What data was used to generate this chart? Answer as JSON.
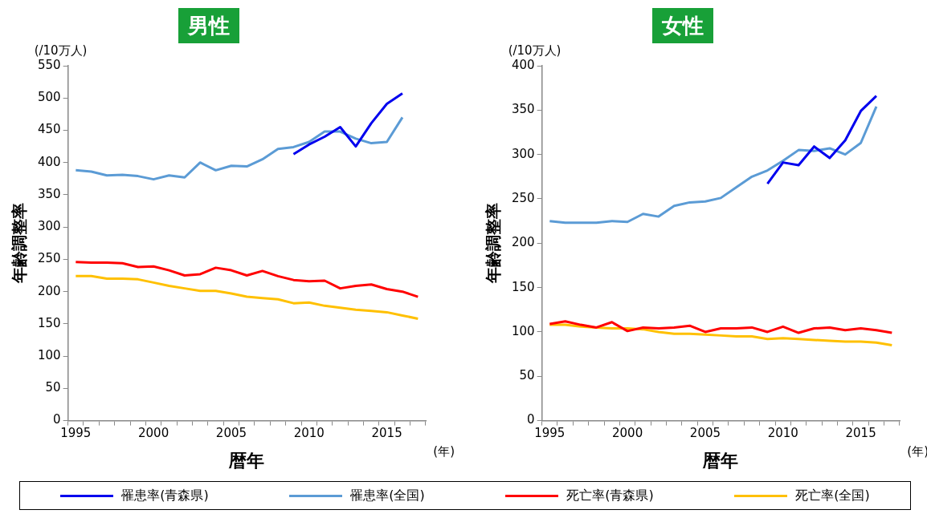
{
  "chart_data": [
    {
      "type": "line",
      "title": "男性",
      "xlabel": "暦年",
      "ylabel": "年齢調整率",
      "annotations": [
        "(/10万人)",
        "(年)"
      ],
      "categories": [
        "1995",
        null,
        null,
        null,
        null,
        "2000",
        null,
        null,
        null,
        null,
        "2005",
        null,
        null,
        null,
        null,
        "2010",
        null,
        null,
        null,
        null,
        "2015",
        null,
        null
      ],
      "series": [
        {
          "name": "罹患率(青森県)",
          "color": "#0000ee",
          "values": [
            null,
            null,
            null,
            null,
            null,
            null,
            null,
            null,
            null,
            null,
            null,
            null,
            null,
            null,
            413,
            428,
            440,
            455,
            425,
            461,
            491,
            507,
            null
          ]
        },
        {
          "name": "罹患率(全国)",
          "color": "#5b9bd5",
          "values": [
            388,
            386,
            380,
            381,
            379,
            374,
            380,
            377,
            400,
            388,
            395,
            394,
            405,
            421,
            424,
            432,
            448,
            448,
            437,
            430,
            432,
            470,
            null
          ]
        },
        {
          "name": "死亡率(青森県)",
          "color": "#ff0000",
          "values": [
            246,
            245,
            245,
            244,
            238,
            239,
            233,
            225,
            227,
            237,
            233,
            225,
            232,
            224,
            218,
            216,
            217,
            205,
            209,
            211,
            204,
            200,
            192
          ]
        },
        {
          "name": "死亡率(全国)",
          "color": "#ffc000",
          "values": [
            224,
            224,
            220,
            220,
            219,
            214,
            209,
            205,
            201,
            201,
            197,
            192,
            190,
            188,
            182,
            183,
            178,
            175,
            172,
            170,
            168,
            163,
            158
          ]
        }
      ],
      "ylim": [
        0,
        550
      ],
      "yticks": [
        0,
        50,
        100,
        150,
        200,
        250,
        300,
        350,
        400,
        450,
        500,
        550
      ],
      "marker": "none",
      "legend": "bottom"
    },
    {
      "type": "line",
      "title": "女性",
      "xlabel": "暦年",
      "ylabel": "年齢調整率",
      "annotations": [
        "(/10万人)",
        "(年)"
      ],
      "categories": [
        "1995",
        null,
        null,
        null,
        null,
        "2000",
        null,
        null,
        null,
        null,
        "2005",
        null,
        null,
        null,
        null,
        "2010",
        null,
        null,
        null,
        null,
        "2015",
        null,
        null
      ],
      "series": [
        {
          "color": "#0000ee",
          "values": [
            null,
            null,
            null,
            null,
            null,
            null,
            null,
            null,
            null,
            null,
            null,
            null,
            null,
            null,
            267,
            291,
            288,
            309,
            296,
            316,
            349,
            366,
            null
          ]
        },
        {
          "color": "#5b9bd5",
          "values": [
            225,
            223,
            223,
            223,
            225,
            224,
            233,
            230,
            242,
            246,
            247,
            251,
            263,
            275,
            282,
            293,
            305,
            304,
            307,
            300,
            313,
            354,
            null
          ]
        },
        {
          "color": "#ff0000",
          "values": [
            109,
            112,
            108,
            105,
            111,
            101,
            105,
            104,
            105,
            107,
            100,
            104,
            104,
            105,
            100,
            106,
            99,
            104,
            105,
            102,
            104,
            102,
            99
          ]
        },
        {
          "color": "#ffc000",
          "values": [
            108,
            108,
            106,
            105,
            104,
            104,
            103,
            100,
            98,
            98,
            97,
            96,
            95,
            95,
            92,
            93,
            92,
            91,
            90,
            89,
            89,
            88,
            85
          ]
        }
      ],
      "ylim": [
        0,
        400
      ],
      "yticks": [
        0,
        50,
        100,
        150,
        200,
        250,
        300,
        350,
        400
      ],
      "marker": "none"
    }
  ]
}
